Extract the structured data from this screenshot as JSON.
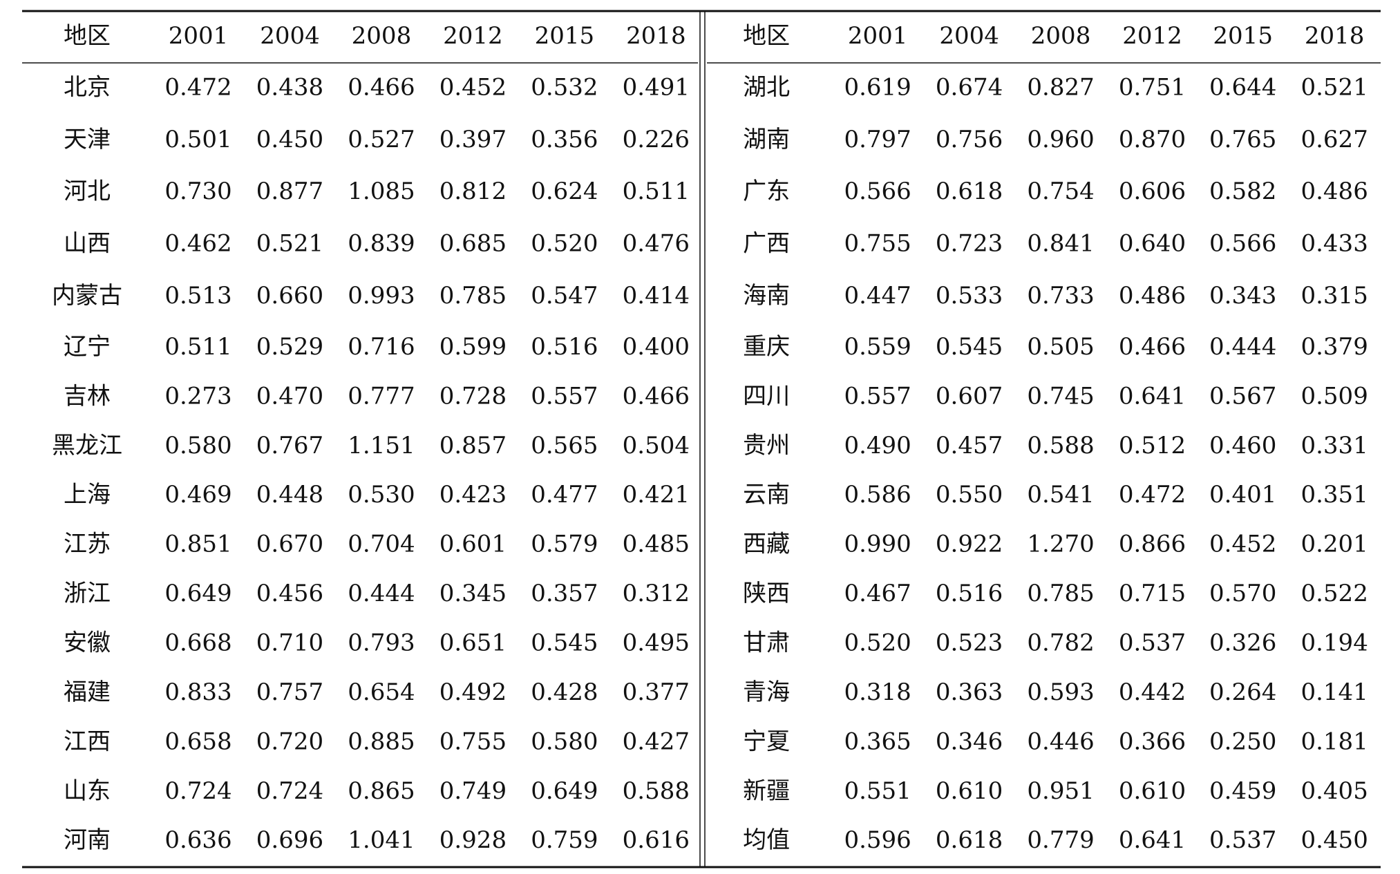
{
  "table": {
    "left": {
      "header": [
        "地区",
        "2001",
        "2004",
        "2008",
        "2012",
        "2015",
        "2018"
      ],
      "rows": [
        [
          "北京",
          "0.472",
          "0.438",
          "0.466",
          "0.452",
          "0.532",
          "0.491"
        ],
        [
          "天津",
          "0.501",
          "0.450",
          "0.527",
          "0.397",
          "0.356",
          "0.226"
        ],
        [
          "河北",
          "0.730",
          "0.877",
          "1.085",
          "0.812",
          "0.624",
          "0.511"
        ],
        [
          "山西",
          "0.462",
          "0.521",
          "0.839",
          "0.685",
          "0.520",
          "0.476"
        ],
        [
          "内蒙古",
          "0.513",
          "0.660",
          "0.993",
          "0.785",
          "0.547",
          "0.414"
        ],
        [
          "辽宁",
          "0.511",
          "0.529",
          "0.716",
          "0.599",
          "0.516",
          "0.400"
        ],
        [
          "吉林",
          "0.273",
          "0.470",
          "0.777",
          "0.728",
          "0.557",
          "0.466"
        ],
        [
          "黑龙江",
          "0.580",
          "0.767",
          "1.151",
          "0.857",
          "0.565",
          "0.504"
        ],
        [
          "上海",
          "0.469",
          "0.448",
          "0.530",
          "0.423",
          "0.477",
          "0.421"
        ],
        [
          "江苏",
          "0.851",
          "0.670",
          "0.704",
          "0.601",
          "0.579",
          "0.485"
        ],
        [
          "浙江",
          "0.649",
          "0.456",
          "0.444",
          "0.345",
          "0.357",
          "0.312"
        ],
        [
          "安徽",
          "0.668",
          "0.710",
          "0.793",
          "0.651",
          "0.545",
          "0.495"
        ],
        [
          "福建",
          "0.833",
          "0.757",
          "0.654",
          "0.492",
          "0.428",
          "0.377"
        ],
        [
          "江西",
          "0.658",
          "0.720",
          "0.885",
          "0.755",
          "0.580",
          "0.427"
        ],
        [
          "山东",
          "0.724",
          "0.724",
          "0.865",
          "0.749",
          "0.649",
          "0.588"
        ],
        [
          "河南",
          "0.636",
          "0.696",
          "1.041",
          "0.928",
          "0.759",
          "0.616"
        ]
      ]
    },
    "right": {
      "header": [
        "地区",
        "2001",
        "2004",
        "2008",
        "2012",
        "2015",
        "2018"
      ],
      "rows": [
        [
          "湖北",
          "0.619",
          "0.674",
          "0.827",
          "0.751",
          "0.644",
          "0.521"
        ],
        [
          "湖南",
          "0.797",
          "0.756",
          "0.960",
          "0.870",
          "0.765",
          "0.627"
        ],
        [
          "广东",
          "0.566",
          "0.618",
          "0.754",
          "0.606",
          "0.582",
          "0.486"
        ],
        [
          "广西",
          "0.755",
          "0.723",
          "0.841",
          "0.640",
          "0.566",
          "0.433"
        ],
        [
          "海南",
          "0.447",
          "0.533",
          "0.733",
          "0.486",
          "0.343",
          "0.315"
        ],
        [
          "重庆",
          "0.559",
          "0.545",
          "0.505",
          "0.466",
          "0.444",
          "0.379"
        ],
        [
          "四川",
          "0.557",
          "0.607",
          "0.745",
          "0.641",
          "0.567",
          "0.509"
        ],
        [
          "贵州",
          "0.490",
          "0.457",
          "0.588",
          "0.512",
          "0.460",
          "0.331"
        ],
        [
          "云南",
          "0.586",
          "0.550",
          "0.541",
          "0.472",
          "0.401",
          "0.351"
        ],
        [
          "西藏",
          "0.990",
          "0.922",
          "1.270",
          "0.866",
          "0.452",
          "0.201"
        ],
        [
          "陕西",
          "0.467",
          "0.516",
          "0.785",
          "0.715",
          "0.570",
          "0.522"
        ],
        [
          "甘肃",
          "0.520",
          "0.523",
          "0.782",
          "0.537",
          "0.326",
          "0.194"
        ],
        [
          "青海",
          "0.318",
          "0.363",
          "0.593",
          "0.442",
          "0.264",
          "0.141"
        ],
        [
          "宁夏",
          "0.365",
          "0.346",
          "0.446",
          "0.366",
          "0.250",
          "0.181"
        ],
        [
          "新疆",
          "0.551",
          "0.610",
          "0.951",
          "0.610",
          "0.459",
          "0.405"
        ],
        [
          "均值",
          "0.596",
          "0.618",
          "0.779",
          "0.641",
          "0.537",
          "0.450"
        ]
      ]
    }
  }
}
